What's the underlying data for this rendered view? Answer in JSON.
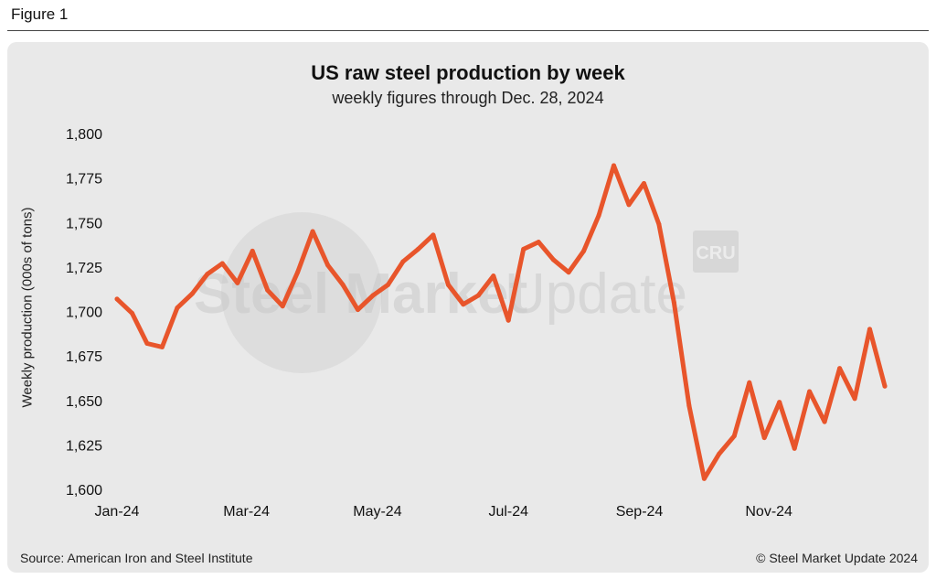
{
  "figure_label": "Figure 1",
  "source": "Source: American Iron and Steel Institute",
  "copyright": "© Steel Market Update 2024",
  "watermark": {
    "brand_text_bold": "Steel Market",
    "brand_text_light": "Update",
    "badge_text": "CRU"
  },
  "colors": {
    "line": "#e8552b",
    "panel": "#e9e9e9",
    "watermark": "#c9c9c9"
  },
  "chart_data": {
    "type": "line",
    "title": "US raw steel production by week",
    "subtitle": "weekly figures through Dec. 28, 2024",
    "xlabel": "",
    "ylabel": "Weekly production (000s of tons)",
    "ylim": [
      1600,
      1800
    ],
    "yticks": [
      1600,
      1625,
      1650,
      1675,
      1700,
      1725,
      1750,
      1775,
      1800
    ],
    "ytick_labels": [
      "1,600",
      "1,625",
      "1,650",
      "1,675",
      "1,700",
      "1,725",
      "1,750",
      "1,775",
      "1,800"
    ],
    "xtick_labels": [
      "Jan-24",
      "Mar-24",
      "May-24",
      "Jul-24",
      "Sep-24",
      "Nov-24"
    ],
    "xtick_weeks": [
      0,
      8.6,
      17.3,
      26,
      34.7,
      43.3
    ],
    "grid": false,
    "legend": "none",
    "series": [
      {
        "name": "Weekly production",
        "values": [
          1707,
          1699,
          1682,
          1680,
          1702,
          1710,
          1721,
          1727,
          1716,
          1734,
          1712,
          1703,
          1722,
          1745,
          1726,
          1715,
          1701,
          1709,
          1715,
          1728,
          1735,
          1743,
          1715,
          1704,
          1709,
          1720,
          1695,
          1735,
          1739,
          1729,
          1722,
          1734,
          1754,
          1782,
          1760,
          1772,
          1749,
          1705,
          1647,
          1606,
          1620,
          1630,
          1660,
          1629,
          1649,
          1623,
          1655,
          1638,
          1668,
          1651,
          1690,
          1658
        ]
      }
    ]
  }
}
